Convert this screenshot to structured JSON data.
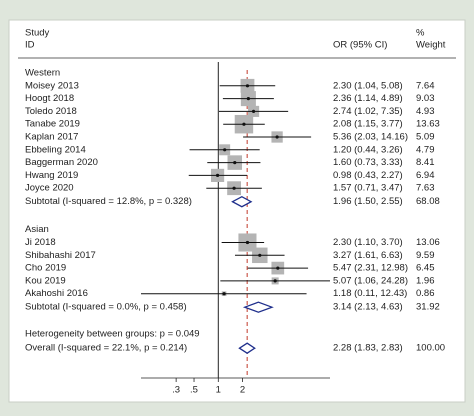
{
  "chart_data": {
    "type": "forest",
    "headers": {
      "study": "Study",
      "id": "ID",
      "or": "OR (95% CI)",
      "percent": "%",
      "weight": "Weight"
    },
    "xlim": [
      0.11,
      24.28
    ],
    "log_scale": true,
    "null_value": 1,
    "xticks": [
      {
        "value": 0.3,
        "label": ".3"
      },
      {
        "value": 0.5,
        "label": ".5"
      },
      1,
      2
    ],
    "square_color": "#b4b4b4",
    "diamond_color": "#1f2f8c",
    "reference_color": "#c0392b",
    "groups": [
      {
        "name": "Western",
        "studies": [
          {
            "label": "Moisey 2013",
            "or": 2.3,
            "lo": 1.04,
            "hi": 5.08,
            "text": "2.30 (1.04, 5.08)",
            "weight": 7.64
          },
          {
            "label": "Hoogt 2018",
            "or": 2.36,
            "lo": 1.14,
            "hi": 4.89,
            "text": "2.36 (1.14, 4.89)",
            "weight": 9.03
          },
          {
            "label": "Toledo 2018",
            "or": 2.74,
            "lo": 1.02,
            "hi": 7.35,
            "text": "2.74 (1.02, 7.35)",
            "weight": 4.93
          },
          {
            "label": "Tanabe 2019",
            "or": 2.08,
            "lo": 1.15,
            "hi": 3.77,
            "text": "2.08 (1.15, 3.77)",
            "weight": 13.63
          },
          {
            "label": "Kaplan 2017",
            "or": 5.36,
            "lo": 2.03,
            "hi": 14.16,
            "text": "5.36 (2.03, 14.16)",
            "weight": 5.09
          },
          {
            "label": "Ebbeling 2014",
            "or": 1.2,
            "lo": 0.44,
            "hi": 3.26,
            "text": "1.20 (0.44, 3.26)",
            "weight": 4.79
          },
          {
            "label": "Baggerman 2020",
            "or": 1.6,
            "lo": 0.73,
            "hi": 3.33,
            "text": "1.60 (0.73, 3.33)",
            "weight": 8.41
          },
          {
            "label": "Hwang  2019",
            "or": 0.98,
            "lo": 0.43,
            "hi": 2.27,
            "text": "0.98 (0.43, 2.27)",
            "weight": 6.94
          },
          {
            "label": "Joyce 2020",
            "or": 1.57,
            "lo": 0.71,
            "hi": 3.47,
            "text": "1.57 (0.71, 3.47)",
            "weight": 7.63
          }
        ],
        "subtotal": {
          "label": "Subtotal  (I-squared = 12.8%, p = 0.328)",
          "or": 1.96,
          "lo": 1.5,
          "hi": 2.55,
          "text": "1.96 (1.50, 2.55)",
          "weight": 68.08
        }
      },
      {
        "name": "Asian",
        "studies": [
          {
            "label": "Ji 2018",
            "or": 2.3,
            "lo": 1.1,
            "hi": 3.7,
            "text": "2.30 (1.10, 3.70)",
            "weight": 13.06
          },
          {
            "label": "Shibahashi 2017",
            "or": 3.27,
            "lo": 1.61,
            "hi": 6.63,
            "text": "3.27 (1.61, 6.63)",
            "weight": 9.59
          },
          {
            "label": "Cho 2019",
            "or": 5.47,
            "lo": 2.31,
            "hi": 12.98,
            "text": "5.47 (2.31, 12.98)",
            "weight": 6.45
          },
          {
            "label": "Kou 2019",
            "or": 5.07,
            "lo": 1.06,
            "hi": 24.28,
            "text": "5.07 (1.06, 24.28)",
            "weight": 1.96
          },
          {
            "label": "Akahoshi 2016",
            "or": 1.18,
            "lo": 0.11,
            "hi": 12.43,
            "text": "1.18 (0.11, 12.43)",
            "weight": 0.86
          }
        ],
        "subtotal": {
          "label": "Subtotal  (I-squared = 0.0%, p = 0.458)",
          "or": 3.14,
          "lo": 2.13,
          "hi": 4.63,
          "text": "3.14 (2.13, 4.63)",
          "weight": 31.92
        }
      }
    ],
    "heterogeneity": "Heterogeneity between groups: p = 0.049",
    "overall": {
      "label": "Overall  (I-squared = 22.1%, p = 0.214)",
      "or": 2.28,
      "lo": 1.83,
      "hi": 2.83,
      "text": "2.28 (1.83, 2.83)",
      "weight": 100,
      "weight_label": "100.00"
    }
  }
}
